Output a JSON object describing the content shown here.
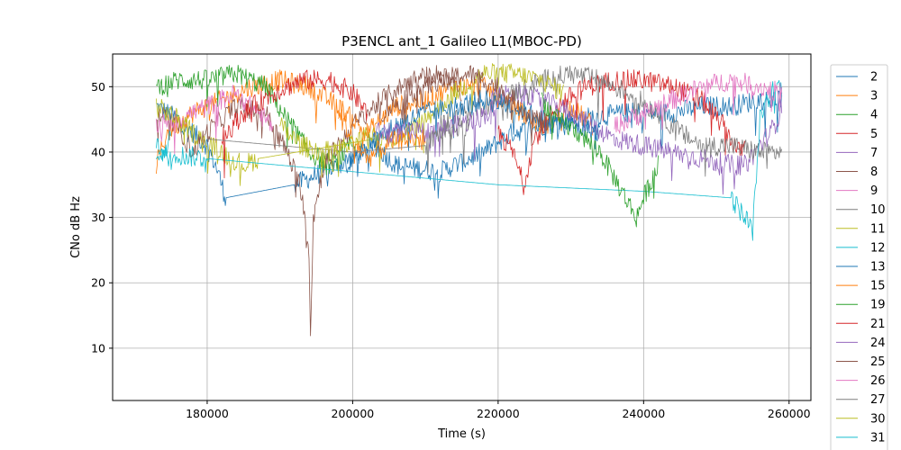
{
  "chart_data": {
    "type": "line",
    "title": "P3ENCL ant_1 Galileo L1(MBOC-PD)",
    "xlabel": "Time (s)",
    "ylabel": "CNo dB Hz",
    "xlim": [
      167000,
      263000
    ],
    "ylim": [
      2,
      55
    ],
    "xticks": [
      180000,
      200000,
      220000,
      240000,
      260000
    ],
    "yticks": [
      10,
      20,
      30,
      40,
      50
    ],
    "grid": true,
    "legend_position": "right-outside",
    "series": [
      {
        "name": "2",
        "color": "#1f77b4",
        "points": [
          [
            173000,
            47
          ],
          [
            176000,
            45
          ],
          [
            180000,
            41
          ],
          [
            181500,
            37
          ],
          [
            182500,
            33
          ],
          [
            192000,
            35
          ],
          [
            198000,
            38
          ],
          [
            203000,
            41
          ],
          [
            206000,
            38
          ],
          [
            212000,
            37
          ],
          [
            218000,
            40
          ],
          [
            222000,
            43
          ],
          [
            226000,
            44
          ],
          [
            230000,
            45
          ],
          [
            238000,
            46
          ],
          [
            244000,
            46
          ],
          [
            248000,
            47
          ],
          [
            252000,
            47
          ],
          [
            256000,
            48
          ],
          [
            259000,
            48
          ]
        ]
      },
      {
        "name": "3",
        "color": "#ff7f0e",
        "points": [
          [
            173000,
            38
          ],
          [
            174500,
            43
          ],
          [
            178000,
            46
          ],
          [
            182000,
            48
          ],
          [
            186000,
            50
          ],
          [
            190000,
            51
          ],
          [
            194000,
            50
          ],
          [
            198000,
            47
          ],
          [
            202000,
            43
          ],
          [
            204000,
            45
          ],
          [
            206000,
            47
          ],
          [
            210000,
            48
          ],
          [
            214000,
            50
          ],
          [
            218000,
            50
          ],
          [
            222000,
            47
          ],
          [
            226000,
            44
          ],
          [
            228000,
            45
          ],
          [
            230000,
            47
          ],
          [
            233000,
            44
          ]
        ]
      },
      {
        "name": "4",
        "color": "#2ca02c",
        "points": [
          [
            173000,
            50
          ],
          [
            176000,
            51
          ],
          [
            180000,
            51
          ],
          [
            184000,
            52
          ],
          [
            188000,
            50
          ],
          [
            191000,
            45
          ],
          [
            194000,
            40
          ],
          [
            197000,
            38
          ],
          [
            200000,
            41
          ]
        ]
      },
      {
        "name": "5",
        "color": "#d62728",
        "points": [
          [
            220000,
            43
          ],
          [
            222000,
            40
          ],
          [
            223500,
            35
          ],
          [
            225000,
            42
          ],
          [
            228000,
            47
          ],
          [
            232000,
            50
          ],
          [
            236000,
            51
          ],
          [
            240000,
            51
          ],
          [
            244000,
            50
          ],
          [
            248000,
            48
          ],
          [
            251000,
            44
          ],
          [
            253000,
            40
          ],
          [
            254000,
            41
          ]
        ]
      },
      {
        "name": "7",
        "color": "#9467bd",
        "points": [
          [
            219000,
            48
          ],
          [
            222000,
            49
          ],
          [
            226000,
            48
          ],
          [
            230000,
            46
          ],
          [
            233000,
            44
          ],
          [
            236000,
            42
          ],
          [
            240000,
            41
          ],
          [
            244000,
            40
          ],
          [
            248000,
            39
          ],
          [
            252000,
            38
          ],
          [
            254000,
            38
          ],
          [
            256000,
            41
          ],
          [
            258000,
            44
          ],
          [
            259000,
            47
          ]
        ]
      },
      {
        "name": "8",
        "color": "#8c564b",
        "points": [
          [
            173000,
            46
          ],
          [
            176000,
            44
          ],
          [
            178000,
            40
          ],
          [
            180000,
            43
          ],
          [
            184000,
            47
          ],
          [
            188000,
            46
          ],
          [
            191000,
            40
          ],
          [
            193000,
            34
          ],
          [
            194000,
            25
          ],
          [
            194200,
            12
          ],
          [
            194600,
            30
          ],
          [
            196000,
            38
          ],
          [
            200000,
            44
          ],
          [
            204000,
            48
          ],
          [
            208000,
            51
          ],
          [
            212000,
            52
          ],
          [
            215000,
            49
          ]
        ]
      },
      {
        "name": "9",
        "color": "#e377c2",
        "points": [
          [
            173000,
            44
          ],
          [
            176000,
            45
          ],
          [
            180000,
            47
          ],
          [
            184000,
            49
          ],
          [
            187000,
            46
          ],
          [
            189000,
            44
          ]
        ]
      },
      {
        "name": "10",
        "color": "#7f7f7f",
        "points": [
          [
            212000,
            44
          ],
          [
            215000,
            46
          ],
          [
            218000,
            47
          ],
          [
            222000,
            49
          ],
          [
            226000,
            51
          ],
          [
            230000,
            52
          ],
          [
            234000,
            51
          ],
          [
            238000,
            49
          ],
          [
            242000,
            46
          ],
          [
            245000,
            43
          ],
          [
            248000,
            41
          ],
          [
            252000,
            41
          ],
          [
            256000,
            40
          ],
          [
            259000,
            40
          ]
        ]
      },
      {
        "name": "11",
        "color": "#bcbd22",
        "points": [
          [
            173000,
            47
          ],
          [
            176000,
            45
          ],
          [
            179000,
            42
          ],
          [
            182000,
            40
          ],
          [
            185000,
            38
          ],
          [
            187000,
            39
          ],
          [
            203000,
            42
          ],
          [
            206000,
            42
          ],
          [
            210000,
            45
          ],
          [
            214000,
            49
          ],
          [
            218000,
            52
          ],
          [
            222000,
            52
          ],
          [
            226000,
            51
          ],
          [
            229000,
            49
          ]
        ]
      },
      {
        "name": "12",
        "color": "#17becf",
        "points": [
          [
            173000,
            40
          ],
          [
            180000,
            39
          ],
          [
            200000,
            37
          ],
          [
            220000,
            35
          ],
          [
            240000,
            34
          ],
          [
            252000,
            33
          ],
          [
            254000,
            30
          ],
          [
            255000,
            28
          ],
          [
            256000,
            45
          ],
          [
            258000,
            50
          ],
          [
            259000,
            50
          ]
        ]
      },
      {
        "name": "13",
        "color": "#1f77b4",
        "points": [
          [
            199000,
            38
          ],
          [
            202000,
            41
          ],
          [
            206000,
            44
          ],
          [
            210000,
            46
          ],
          [
            214000,
            47
          ],
          [
            218000,
            48
          ],
          [
            222000,
            47
          ],
          [
            226000,
            45
          ],
          [
            230000,
            44
          ],
          [
            234000,
            43
          ]
        ]
      },
      {
        "name": "15",
        "color": "#ff7f0e",
        "points": [
          [
            198000,
            46
          ],
          [
            200000,
            42
          ],
          [
            202000,
            39
          ],
          [
            206000,
            42
          ],
          [
            210000,
            42
          ]
        ]
      },
      {
        "name": "19",
        "color": "#2ca02c",
        "points": [
          [
            226000,
            48
          ],
          [
            228000,
            45
          ],
          [
            231000,
            43
          ],
          [
            234000,
            40
          ],
          [
            237000,
            34
          ],
          [
            239000,
            30
          ],
          [
            240000,
            33
          ],
          [
            242000,
            38
          ]
        ]
      },
      {
        "name": "21",
        "color": "#d62728",
        "points": [
          [
            182000,
            42
          ],
          [
            185000,
            46
          ],
          [
            189000,
            49
          ],
          [
            193000,
            51
          ],
          [
            197000,
            51
          ],
          [
            200000,
            49
          ],
          [
            202000,
            46
          ]
        ]
      },
      {
        "name": "24",
        "color": "#9467bd",
        "points": [
          [
            203000,
            43
          ],
          [
            206000,
            43
          ],
          [
            210000,
            43
          ],
          [
            214000,
            44
          ],
          [
            217000,
            45
          ],
          [
            220000,
            47
          ]
        ]
      },
      {
        "name": "25",
        "color": "#8c564b",
        "points": [
          [
            204000,
            46
          ],
          [
            208000,
            49
          ],
          [
            212000,
            51
          ],
          [
            216000,
            52
          ],
          [
            220000,
            50
          ],
          [
            224000,
            46
          ],
          [
            227000,
            44
          ]
        ]
      },
      {
        "name": "26",
        "color": "#e377c2",
        "points": [
          [
            236000,
            44
          ],
          [
            240000,
            46
          ],
          [
            244000,
            48
          ],
          [
            248000,
            50
          ],
          [
            252000,
            51
          ],
          [
            256000,
            50
          ],
          [
            259000,
            49
          ]
        ]
      },
      {
        "name": "27",
        "color": "#7f7f7f",
        "points": [
          [
            180000,
            42
          ],
          [
            190000,
            41
          ],
          [
            200000,
            40
          ],
          [
            210000,
            41
          ],
          [
            212000,
            43
          ],
          [
            216000,
            44
          ]
        ]
      },
      {
        "name": "30",
        "color": "#bcbd22",
        "points": [
          [
            190000,
            44
          ],
          [
            193000,
            41
          ],
          [
            196000,
            40
          ],
          [
            200000,
            41
          ],
          [
            203000,
            43
          ]
        ]
      },
      {
        "name": "31",
        "color": "#17becf",
        "points": [
          [
            173000,
            41
          ],
          [
            174000,
            40
          ],
          [
            175000,
            42
          ]
        ]
      }
    ]
  }
}
